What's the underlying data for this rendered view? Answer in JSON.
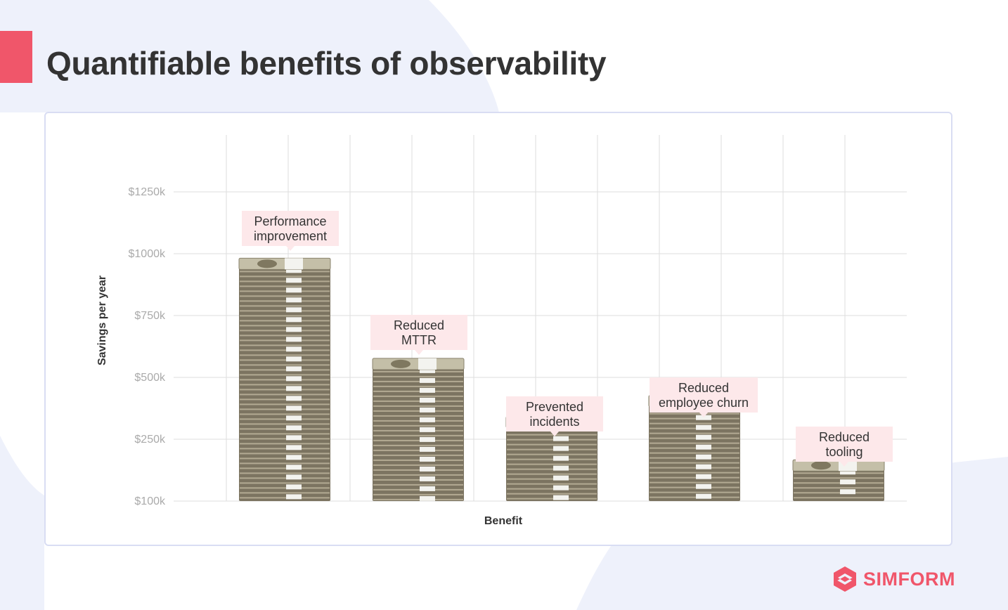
{
  "slide": {
    "title": "Quantifiable benefits of observability"
  },
  "logo": {
    "text": "SIMFORM"
  },
  "colors": {
    "accent": "#f0566a",
    "title": "#333333",
    "card_border": "#d9ddf3",
    "background_shape": "#eef1fb",
    "grid": "#dddddd",
    "tick_label": "#aaaaaa",
    "callout_bg": "#fde8ea",
    "money_dark": "#7c7461",
    "money_light": "#b3aa93",
    "money_band": "#f3f3ef"
  },
  "chart_data": {
    "type": "bar",
    "title": "",
    "xlabel": "Benefit",
    "ylabel": "Savings per year",
    "yticks": [
      "$100k",
      "$250k",
      "$500k",
      "$750k",
      "$1000k",
      "$1250k"
    ],
    "categories": [
      "Performance improvement",
      "Reduced MTTR",
      "Prevented incidents",
      "Reduced employee churn",
      "Reduced tooling"
    ],
    "values": [
      965,
      560,
      325,
      410,
      190
    ],
    "unit": "$k",
    "annotations": [
      [
        "Performance",
        "improvement"
      ],
      [
        "Reduced",
        "MTTR"
      ],
      [
        "Prevented",
        "incidents"
      ],
      [
        "Reduced",
        "employee churn"
      ],
      [
        "Reduced",
        "tooling"
      ]
    ],
    "bar_style": "stacks of banknotes",
    "grid": true,
    "legend": "none"
  }
}
